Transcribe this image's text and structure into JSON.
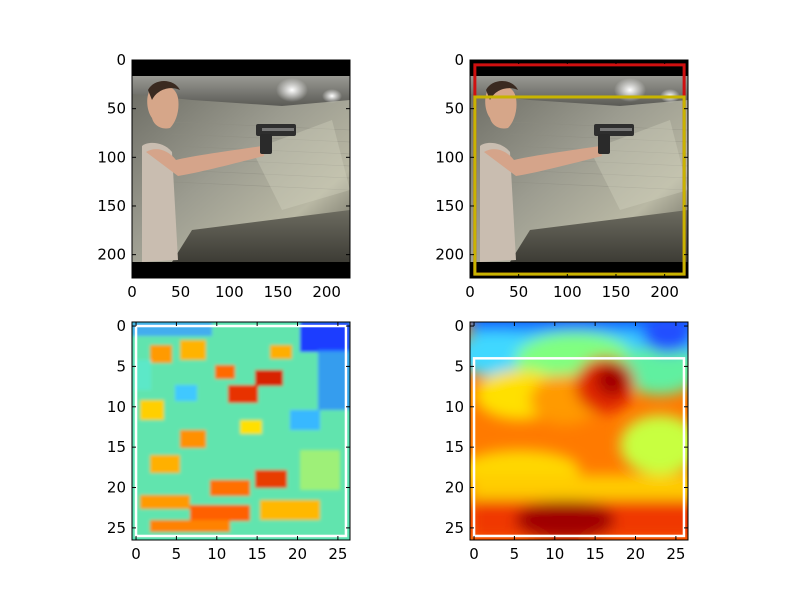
{
  "figure": {
    "panels": [
      {
        "id": "photo",
        "content": "image: young man in grey t-shirt aiming a handgun to the right in an indoor shooting range; black letterbox bars top and bottom",
        "x_ticks": [
          "0",
          "50",
          "100",
          "150",
          "200"
        ],
        "y_ticks": [
          "0",
          "50",
          "100",
          "150",
          "200"
        ],
        "boxes": []
      },
      {
        "id": "photo-with-boxes",
        "content": "same image with two detection boxes",
        "x_ticks": [
          "0",
          "50",
          "100",
          "150",
          "200"
        ],
        "y_ticks": [
          "0",
          "50",
          "100",
          "150",
          "200"
        ],
        "boxes": [
          {
            "color": "#d01010",
            "x0": 5,
            "y0": 5,
            "x1": 220,
            "y1": 220
          },
          {
            "color": "#c8b400",
            "x0": 5,
            "y0": 38,
            "x1": 220,
            "y1": 220
          }
        ]
      },
      {
        "id": "noisy-heatmap",
        "content": "jet-colormap heatmap, noisy",
        "x_ticks": [
          "0",
          "5",
          "10",
          "15",
          "20",
          "25"
        ],
        "y_ticks": [
          "0",
          "5",
          "10",
          "15",
          "20",
          "25"
        ],
        "boxes": [
          {
            "color": "#ffffff",
            "x0": 0,
            "y0": 0,
            "x1": 26,
            "y1": 26
          }
        ]
      },
      {
        "id": "smooth-heatmap",
        "content": "jet-colormap heatmap, smooth",
        "x_ticks": [
          "0",
          "5",
          "10",
          "15",
          "20",
          "25"
        ],
        "y_ticks": [
          "0",
          "5",
          "10",
          "15",
          "20",
          "25"
        ],
        "boxes": [
          {
            "color": "#ffffff",
            "x0": 0,
            "y0": 4,
            "x1": 26,
            "y1": 26
          }
        ]
      }
    ]
  },
  "chart_data": [
    {
      "type": "image",
      "xlim": [
        0,
        224
      ],
      "ylim": [
        224,
        0
      ],
      "xticks": [
        0,
        50,
        100,
        150,
        200
      ],
      "yticks": [
        0,
        50,
        100,
        150,
        200
      ]
    },
    {
      "type": "image",
      "xlim": [
        0,
        224
      ],
      "ylim": [
        224,
        0
      ],
      "xticks": [
        0,
        50,
        100,
        150,
        200
      ],
      "yticks": [
        0,
        50,
        100,
        150,
        200
      ],
      "annotations": [
        {
          "shape": "rectangle",
          "color": "red",
          "x": [
            5,
            220
          ],
          "y": [
            5,
            220
          ]
        },
        {
          "shape": "rectangle",
          "color": "yellow",
          "x": [
            5,
            220
          ],
          "y": [
            38,
            220
          ]
        }
      ]
    },
    {
      "type": "heatmap",
      "colormap": "jet",
      "xlim": [
        -0.5,
        26.5
      ],
      "ylim": [
        26.5,
        -0.5
      ],
      "xticks": [
        0,
        5,
        10,
        15,
        20,
        25
      ],
      "yticks": [
        0,
        5,
        10,
        15,
        20,
        25
      ],
      "annotations": [
        {
          "shape": "rectangle",
          "color": "white",
          "x": [
            0,
            26
          ],
          "y": [
            0,
            26
          ]
        }
      ]
    },
    {
      "type": "heatmap",
      "colormap": "jet",
      "xlim": [
        -0.5,
        26.5
      ],
      "ylim": [
        26.5,
        -0.5
      ],
      "xticks": [
        0,
        5,
        10,
        15,
        20,
        25
      ],
      "yticks": [
        0,
        5,
        10,
        15,
        20,
        25
      ],
      "annotations": [
        {
          "shape": "rectangle",
          "color": "white",
          "x": [
            0,
            26
          ],
          "y": [
            4,
            26
          ]
        }
      ]
    }
  ]
}
